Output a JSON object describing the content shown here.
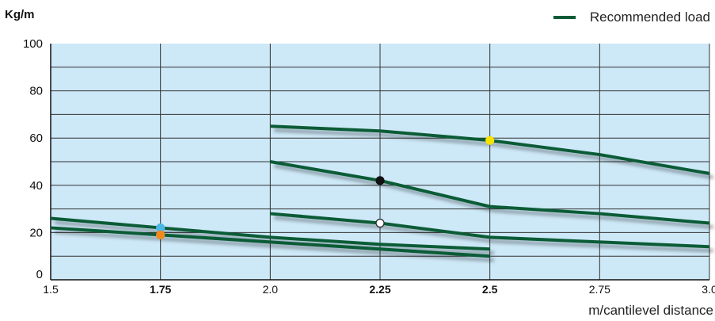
{
  "chart_data": {
    "type": "line",
    "ylabel": "Kg/m",
    "xlabel": "m/cantilevel distance",
    "legend": {
      "label": "Recommended load",
      "color": "#0b5c36",
      "position": "top-right"
    },
    "ylim": [
      0,
      100
    ],
    "xlim": [
      1.5,
      3.0
    ],
    "yticks": [
      "0",
      "20",
      "40",
      "60",
      "80",
      "100"
    ],
    "xticks": [
      {
        "value": 1.5,
        "label": "1.5",
        "bold": false
      },
      {
        "value": 1.75,
        "label": "1.75",
        "bold": true
      },
      {
        "value": 2.0,
        "label": "2.0",
        "bold": false
      },
      {
        "value": 2.25,
        "label": "2.25",
        "bold": true
      },
      {
        "value": 2.5,
        "label": "2.5",
        "bold": true
      },
      {
        "value": 2.75,
        "label": "2.75",
        "bold": false
      },
      {
        "value": 3.0,
        "label": "3.0",
        "bold": false
      }
    ],
    "grid": true,
    "plot_bg": "#cde8f7",
    "line_color": "#0b5c36",
    "series": [
      {
        "points": [
          [
            2.0,
            65
          ],
          [
            2.25,
            63
          ],
          [
            2.5,
            59
          ],
          [
            2.75,
            53
          ],
          [
            3.0,
            45
          ]
        ]
      },
      {
        "points": [
          [
            2.0,
            50
          ],
          [
            2.25,
            42
          ],
          [
            2.5,
            31
          ],
          [
            2.75,
            28
          ],
          [
            3.0,
            24
          ]
        ]
      },
      {
        "points": [
          [
            2.0,
            28
          ],
          [
            2.25,
            24
          ],
          [
            2.5,
            18
          ],
          [
            2.75,
            16
          ],
          [
            3.0,
            14
          ]
        ]
      },
      {
        "points": [
          [
            1.5,
            26
          ],
          [
            1.75,
            22
          ],
          [
            2.0,
            18
          ],
          [
            2.25,
            15
          ],
          [
            2.5,
            13
          ]
        ]
      },
      {
        "points": [
          [
            1.5,
            22
          ],
          [
            1.75,
            19
          ],
          [
            2.0,
            16
          ],
          [
            2.25,
            13
          ],
          [
            2.5,
            10
          ]
        ]
      }
    ],
    "markers": [
      {
        "x": 2.5,
        "y": 59,
        "color": "#f5e400",
        "stroke": "#f5e400"
      },
      {
        "x": 2.25,
        "y": 42,
        "color": "#111111",
        "stroke": "#111111"
      },
      {
        "x": 2.25,
        "y": 24,
        "color": "#ffffff",
        "stroke": "#222222"
      },
      {
        "x": 1.75,
        "y": 22,
        "color": "#4db8e8",
        "stroke": "#4db8e8"
      },
      {
        "x": 1.75,
        "y": 19,
        "color": "#f08a1c",
        "stroke": "#f08a1c"
      }
    ]
  }
}
